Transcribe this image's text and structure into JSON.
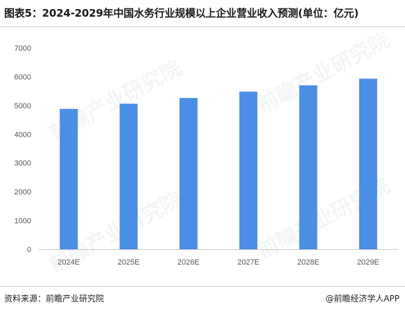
{
  "header": {
    "title": "图表5：2024-2029年中国水务行业规模以上企业营业收入预测(单位：亿元)"
  },
  "footer": {
    "source": "资料来源：前瞻产业研究院",
    "credit": "@前瞻经济学人APP"
  },
  "watermark": {
    "text": "前瞻产业研究院"
  },
  "colors": {
    "bar": "#4a8ee6",
    "axis": "#cccccc",
    "tick_text": "#555555"
  },
  "chart_data": {
    "type": "bar",
    "categories": [
      "2024E",
      "2025E",
      "2026E",
      "2027E",
      "2028E",
      "2029E"
    ],
    "values": [
      4880,
      5060,
      5260,
      5480,
      5700,
      5930
    ],
    "yticks": [
      0,
      1000,
      2000,
      3000,
      4000,
      5000,
      6000,
      7000
    ],
    "ylim": [
      0,
      7000
    ],
    "title": "",
    "xlabel": "",
    "ylabel": "",
    "grid": false
  }
}
